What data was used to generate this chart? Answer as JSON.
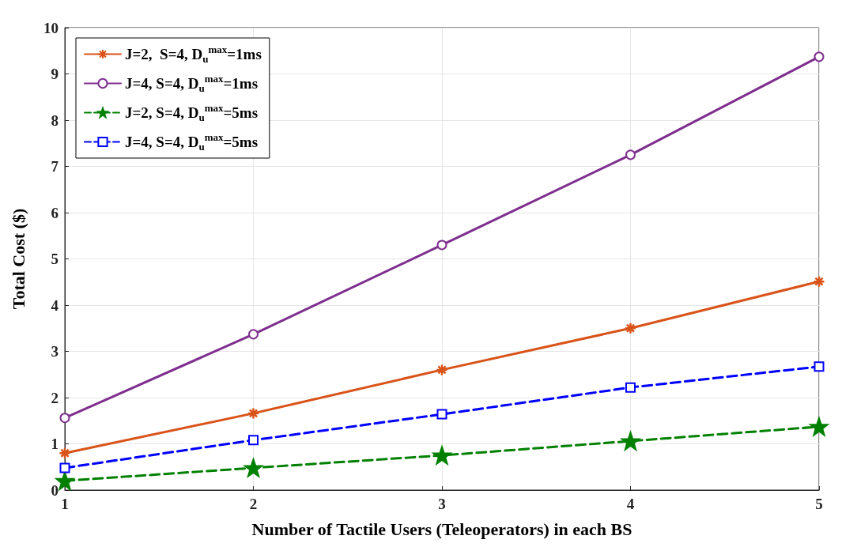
{
  "chart_data": {
    "type": "line",
    "xlabel": "Number of Tactile Users (Teleoperators) in each BS",
    "ylabel": "Total Cost ($)",
    "x": [
      1,
      2,
      3,
      4,
      5
    ],
    "xlim": [
      1,
      5
    ],
    "xticks": [
      1,
      2,
      3,
      4,
      5
    ],
    "ylim": [
      0,
      10
    ],
    "yticks": [
      0,
      1,
      2,
      3,
      4,
      5,
      6,
      7,
      8,
      9,
      10
    ],
    "grid": true,
    "legend": "top left",
    "series": [
      {
        "name": "J=2,  S=4, D$_{u}$$^{max}$=1ms",
        "color": "#d95319",
        "marker": "cross",
        "line_style": "solid",
        "values": [
          0.8,
          1.66,
          2.6,
          3.5,
          4.51
        ]
      },
      {
        "name": "J=4, S=4, D$_{u}$$^{max}$=1ms",
        "color": "#7e2f8e",
        "marker": "circle",
        "line_style": "solid",
        "values": [
          1.56,
          3.37,
          5.3,
          7.25,
          9.37
        ]
      },
      {
        "name": "J=2, S=4, D$_{u}$$^{max}$=5ms",
        "color": "#008000",
        "marker": "star",
        "line_style": "dashed",
        "values": [
          0.2,
          0.48,
          0.75,
          1.06,
          1.37
        ]
      },
      {
        "name": "J=4, S=4, D$_{u}$$^{max}$=5ms",
        "color": "#0000ff",
        "marker": "square",
        "line_style": "dashed",
        "values": [
          0.48,
          1.08,
          1.64,
          2.22,
          2.67
        ]
      }
    ]
  }
}
